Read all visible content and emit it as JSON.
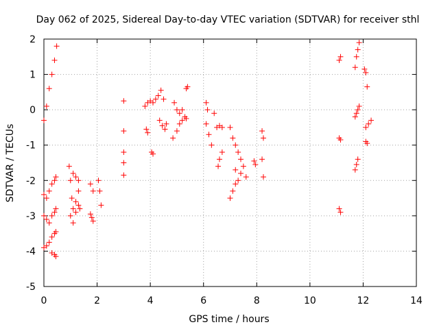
{
  "chart_data": {
    "type": "scatter",
    "title": "Day 062 of 2025, Sidereal Day-to-day VTEC variation (SDTVAR) for receiver sthl",
    "xlabel": "GPS time / hours",
    "ylabel": "SDTVAR / TECUs",
    "xlim": [
      0,
      14
    ],
    "ylim": [
      -5,
      2
    ],
    "xticks": [
      "0",
      "2",
      "4",
      "6",
      "8",
      "10",
      "12",
      "14"
    ],
    "yticks": [
      "-5",
      "-4",
      "-3",
      "-2",
      "-1",
      "0",
      "1",
      "2"
    ],
    "grid": true,
    "marker": "plus",
    "color": "#ff0000",
    "series": [
      {
        "name": "sthl",
        "segments": [
          {
            "x": [
              0.0,
              0.1,
              0.2,
              0.3,
              0.4,
              0.48
            ],
            "y": [
              -0.3,
              0.1,
              0.6,
              1.0,
              1.4,
              1.8
            ]
          },
          {
            "x": [
              0.0,
              0.1,
              0.2,
              0.3,
              0.4,
              0.45
            ],
            "y": [
              -2.4,
              -2.5,
              -2.3,
              -2.1,
              -2.0,
              -1.9
            ]
          },
          {
            "x": [
              0.0,
              0.1,
              0.2,
              0.3,
              0.4,
              0.45
            ],
            "y": [
              -3.0,
              -3.1,
              -3.2,
              -3.0,
              -2.9,
              -2.8
            ]
          },
          {
            "x": [
              0.0,
              0.1,
              0.2,
              0.3,
              0.4,
              0.45
            ],
            "y": [
              -3.9,
              -3.85,
              -3.75,
              -3.6,
              -3.5,
              -3.45
            ]
          },
          {
            "x": [
              0.3,
              0.4,
              0.45
            ],
            "y": [
              -4.05,
              -4.1,
              -4.15
            ]
          },
          {
            "x": [
              0.95,
              1.0,
              1.05,
              1.1,
              1.2,
              1.3
            ],
            "y": [
              -1.6,
              -2.0,
              -2.5,
              -2.8,
              -2.6,
              -2.3
            ]
          },
          {
            "x": [
              1.0,
              1.1,
              1.2,
              1.3,
              1.35
            ],
            "y": [
              -3.0,
              -3.2,
              -2.9,
              -2.7,
              -2.8
            ]
          },
          {
            "x": [
              1.1,
              1.2,
              1.3
            ],
            "y": [
              -1.8,
              -1.9,
              -2.0
            ]
          },
          {
            "x": [
              1.75,
              1.8,
              1.85
            ],
            "y": [
              -2.95,
              -3.05,
              -3.15
            ]
          },
          {
            "x": [
              1.75,
              1.85
            ],
            "y": [
              -2.1,
              -2.3
            ]
          },
          {
            "x": [
              2.05,
              2.1,
              2.15
            ],
            "y": [
              -2.0,
              -2.3,
              -2.7
            ]
          },
          {
            "x": [
              3.0,
              3.0,
              3.0,
              3.0,
              3.0
            ],
            "y": [
              0.25,
              -0.6,
              -1.2,
              -1.5,
              -1.85
            ]
          },
          {
            "x": [
              3.8,
              3.9,
              4.0,
              4.1,
              4.2
            ],
            "y": [
              0.1,
              0.2,
              0.25,
              0.2,
              0.3
            ]
          },
          {
            "x": [
              4.3,
              4.4,
              4.5
            ],
            "y": [
              0.4,
              0.55,
              0.3
            ]
          },
          {
            "x": [
              3.85,
              3.9
            ],
            "y": [
              -0.55,
              -0.65
            ]
          },
          {
            "x": [
              4.05,
              4.1
            ],
            "y": [
              -1.2,
              -1.25
            ]
          },
          {
            "x": [
              4.35,
              4.45,
              4.55,
              4.6
            ],
            "y": [
              -0.3,
              -0.45,
              -0.55,
              -0.4
            ]
          },
          {
            "x": [
              4.85,
              5.0,
              5.1,
              5.2
            ],
            "y": [
              -0.8,
              -0.6,
              -0.4,
              -0.3
            ]
          },
          {
            "x": [
              4.9,
              5.0,
              5.1,
              5.2
            ],
            "y": [
              0.2,
              0.0,
              -0.1,
              0.0
            ]
          },
          {
            "x": [
              5.35,
              5.4
            ],
            "y": [
              0.6,
              0.65
            ]
          },
          {
            "x": [
              5.3,
              5.35
            ],
            "y": [
              -0.2,
              -0.25
            ]
          },
          {
            "x": [
              6.1,
              6.2,
              6.3
            ],
            "y": [
              -0.4,
              -0.7,
              -1.0
            ]
          },
          {
            "x": [
              6.1,
              6.15
            ],
            "y": [
              0.2,
              0.0
            ]
          },
          {
            "x": [
              6.4,
              6.5,
              6.6,
              6.7
            ],
            "y": [
              -0.1,
              -0.5,
              -0.45,
              -0.5
            ]
          },
          {
            "x": [
              6.55,
              6.6,
              6.7
            ],
            "y": [
              -1.6,
              -1.4,
              -1.2
            ]
          },
          {
            "x": [
              7.0,
              7.1,
              7.2,
              7.3,
              7.4,
              7.5
            ],
            "y": [
              -0.5,
              -0.8,
              -1.0,
              -1.2,
              -1.4,
              -1.6
            ]
          },
          {
            "x": [
              7.0,
              7.1,
              7.2,
              7.3
            ],
            "y": [
              -2.5,
              -2.3,
              -2.1,
              -2.0
            ]
          },
          {
            "x": [
              7.2,
              7.4,
              7.6
            ],
            "y": [
              -1.7,
              -1.8,
              -1.9
            ]
          },
          {
            "x": [
              7.9,
              7.95
            ],
            "y": [
              -1.45,
              -1.55
            ]
          },
          {
            "x": [
              8.2,
              8.25
            ],
            "y": [
              -0.6,
              -0.8
            ]
          },
          {
            "x": [
              8.2,
              8.25
            ],
            "y": [
              -1.4,
              -1.9
            ]
          },
          {
            "x": [
              11.1,
              11.15
            ],
            "y": [
              1.4,
              1.5
            ]
          },
          {
            "x": [
              11.1,
              11.15
            ],
            "y": [
              -0.8,
              -0.85
            ]
          },
          {
            "x": [
              11.1,
              11.15
            ],
            "y": [
              -2.8,
              -2.9
            ]
          },
          {
            "x": [
              11.7,
              11.75,
              11.8,
              11.85
            ],
            "y": [
              1.2,
              1.5,
              1.7,
              1.9
            ]
          },
          {
            "x": [
              11.7,
              11.75,
              11.8,
              11.85
            ],
            "y": [
              -0.2,
              -0.1,
              0.0,
              0.1
            ]
          },
          {
            "x": [
              11.7,
              11.75,
              11.8
            ],
            "y": [
              -1.7,
              -1.55,
              -1.4
            ]
          },
          {
            "x": [
              12.05,
              12.1,
              12.15
            ],
            "y": [
              1.15,
              1.05,
              0.65
            ]
          },
          {
            "x": [
              12.1,
              12.2,
              12.3
            ],
            "y": [
              -0.5,
              -0.4,
              -0.3
            ]
          },
          {
            "x": [
              12.1,
              12.15
            ],
            "y": [
              -0.9,
              -0.95
            ]
          }
        ]
      }
    ]
  }
}
